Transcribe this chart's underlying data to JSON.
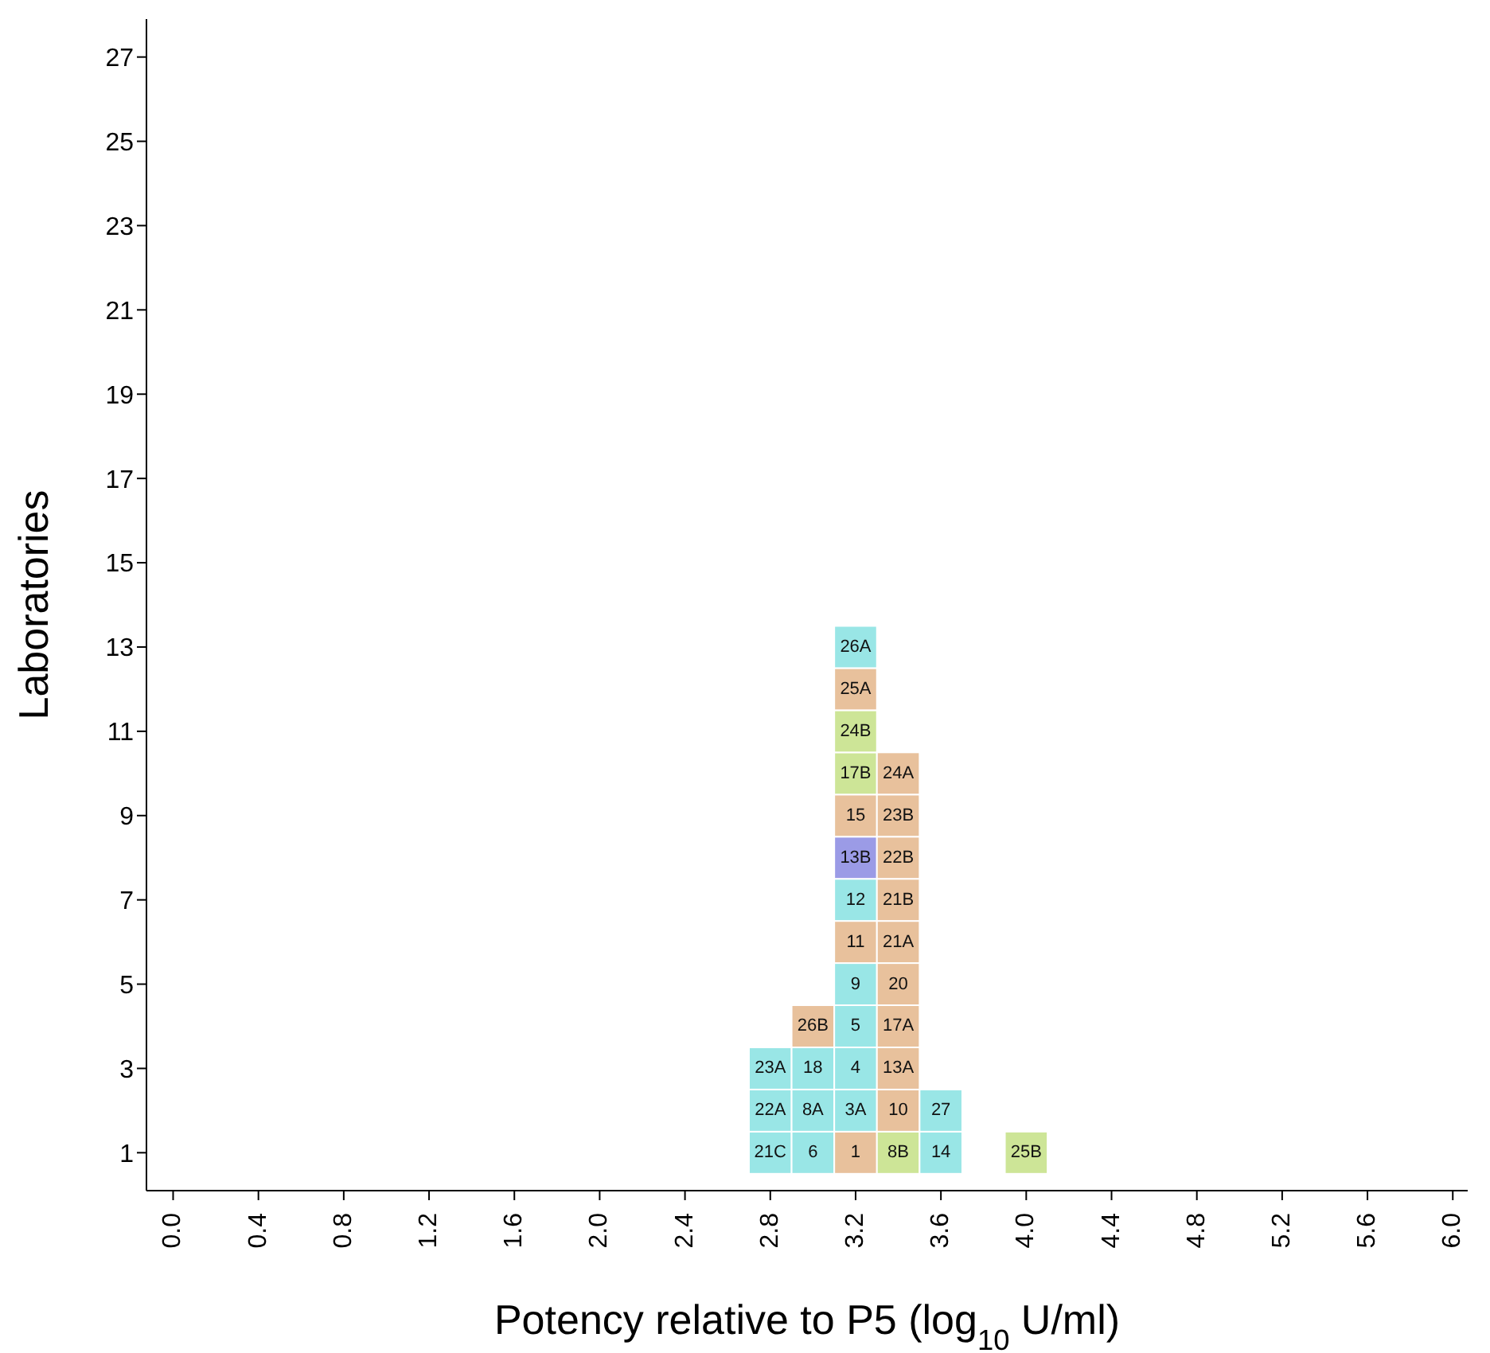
{
  "chart_data": {
    "type": "scatter",
    "xlabel": "Potency relative to P5 (log$_{10}$ U/ml)",
    "ylabel": "Laboratories",
    "marker": "square",
    "grid": false,
    "xlim": [
      -0.125,
      6.07
    ],
    "ylim": [
      0.1,
      27.9
    ],
    "xticks": [
      {
        "value": 0,
        "label": "0.0"
      },
      0.4,
      0.8,
      1.2,
      1.6,
      {
        "value": 2,
        "label": "2.0"
      },
      2.4,
      2.8,
      3.2,
      3.6,
      {
        "value": 4,
        "label": "4.0"
      },
      4.4,
      4.8,
      5.2,
      5.6,
      {
        "value": 6,
        "label": "6.0"
      }
    ],
    "yticks": [
      1,
      3,
      5,
      7,
      9,
      11,
      13,
      15,
      17,
      19,
      21,
      23,
      25,
      27
    ],
    "series": [
      {
        "x": [
          2.8,
          2.8,
          2.8,
          3.0,
          3.0,
          3.0,
          3.0,
          3.2,
          3.2,
          3.2,
          3.2,
          3.2,
          3.2,
          3.2,
          3.2,
          3.2,
          3.2,
          3.2,
          3.2,
          3.2,
          3.4,
          3.4,
          3.4,
          3.4,
          3.4,
          3.4,
          3.4,
          3.4,
          3.4,
          3.4,
          3.6,
          3.6,
          4.0
        ],
        "values": [
          1,
          2,
          3,
          1,
          2,
          3,
          4,
          1,
          2,
          3,
          4,
          5,
          6,
          7,
          8,
          9,
          10,
          11,
          12,
          13,
          1,
          2,
          3,
          4,
          5,
          6,
          7,
          8,
          9,
          10,
          1,
          2,
          1
        ],
        "colors": [
          "#99e6e6",
          "#99e6e6",
          "#99e6e6",
          "#99e6e6",
          "#99e6e6",
          "#99e6e6",
          "#e8c19c",
          "#e8c19c",
          "#99e6e6",
          "#99e6e6",
          "#99e6e6",
          "#99e6e6",
          "#e8c19c",
          "#99e6e6",
          "#9b9be6",
          "#e8c19c",
          "#cde597",
          "#cde597",
          "#e8c19c",
          "#99e6e6",
          "#cde597",
          "#e8c19c",
          "#e8c19c",
          "#e8c19c",
          "#e8c19c",
          "#e8c19c",
          "#e8c19c",
          "#e8c19c",
          "#e8c19c",
          "#e8c19c",
          "#99e6e6",
          "#99e6e6",
          "#cde597"
        ]
      }
    ],
    "annotations": [
      {
        "text": "21C",
        "x": 2.8,
        "y": 1
      },
      {
        "text": "22A",
        "x": 2.8,
        "y": 2
      },
      {
        "text": "23A",
        "x": 2.8,
        "y": 3
      },
      {
        "text": "6",
        "x": 3.0,
        "y": 1
      },
      {
        "text": "8A",
        "x": 3.0,
        "y": 2
      },
      {
        "text": "18",
        "x": 3.0,
        "y": 3
      },
      {
        "text": "26B",
        "x": 3.0,
        "y": 4
      },
      {
        "text": "1",
        "x": 3.2,
        "y": 1
      },
      {
        "text": "3A",
        "x": 3.2,
        "y": 2
      },
      {
        "text": "4",
        "x": 3.2,
        "y": 3
      },
      {
        "text": "5",
        "x": 3.2,
        "y": 4
      },
      {
        "text": "9",
        "x": 3.2,
        "y": 5
      },
      {
        "text": "11",
        "x": 3.2,
        "y": 6
      },
      {
        "text": "12",
        "x": 3.2,
        "y": 7
      },
      {
        "text": "13B",
        "x": 3.2,
        "y": 8
      },
      {
        "text": "15",
        "x": 3.2,
        "y": 9
      },
      {
        "text": "17B",
        "x": 3.2,
        "y": 10
      },
      {
        "text": "24B",
        "x": 3.2,
        "y": 11
      },
      {
        "text": "25A",
        "x": 3.2,
        "y": 12
      },
      {
        "text": "26A",
        "x": 3.2,
        "y": 13
      },
      {
        "text": "8B",
        "x": 3.4,
        "y": 1
      },
      {
        "text": "10",
        "x": 3.4,
        "y": 2
      },
      {
        "text": "13A",
        "x": 3.4,
        "y": 3
      },
      {
        "text": "17A",
        "x": 3.4,
        "y": 4
      },
      {
        "text": "20",
        "x": 3.4,
        "y": 5
      },
      {
        "text": "21A",
        "x": 3.4,
        "y": 6
      },
      {
        "text": "21B",
        "x": 3.4,
        "y": 7
      },
      {
        "text": "22B",
        "x": 3.4,
        "y": 8
      },
      {
        "text": "23B",
        "x": 3.4,
        "y": 9
      },
      {
        "text": "24A",
        "x": 3.4,
        "y": 10
      },
      {
        "text": "14",
        "x": 3.6,
        "y": 1
      },
      {
        "text": "27",
        "x": 3.6,
        "y": 2
      },
      {
        "text": "25B",
        "x": 4.0,
        "y": 1
      }
    ]
  }
}
